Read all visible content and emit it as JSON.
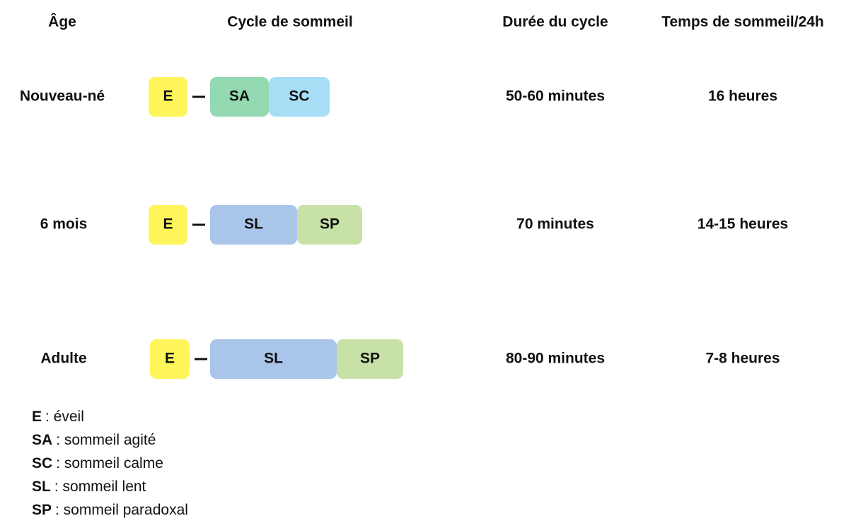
{
  "header": {
    "age": "Âge",
    "cycle": "Cycle de sommeil",
    "duration": "Durée du cycle",
    "total": "Temps de sommeil/24h"
  },
  "rows": [
    {
      "age": "Nouveau-né",
      "segments": [
        {
          "label": "E",
          "color": "#fdf55a"
        },
        {
          "label": "SA",
          "color": "#93d9b2"
        },
        {
          "label": "SC",
          "color": "#a6dff5"
        }
      ],
      "duration": "50-60 minutes",
      "total": "16 heures"
    },
    {
      "age": "6 mois",
      "segments": [
        {
          "label": "E",
          "color": "#fdf55a"
        },
        {
          "label": "SL",
          "color": "#aac5ea"
        },
        {
          "label": "SP",
          "color": "#c7e1a7"
        }
      ],
      "duration": "70 minutes",
      "total": "14-15 heures"
    },
    {
      "age": "Adulte",
      "segments": [
        {
          "label": "E",
          "color": "#fdf55a"
        },
        {
          "label": "SL",
          "color": "#aac5ea"
        },
        {
          "label": "SP",
          "color": "#c7e1a7"
        }
      ],
      "duration": "80-90 minutes",
      "total": "7-8 heures"
    }
  ],
  "legend": [
    {
      "abbr": "E",
      "text": ": éveil"
    },
    {
      "abbr": "SA",
      "text": ": sommeil agité"
    },
    {
      "abbr": "SC",
      "text": ": sommeil calme"
    },
    {
      "abbr": "SL",
      "text": ": sommeil lent"
    },
    {
      "abbr": "SP",
      "text": ": sommeil paradoxal"
    }
  ]
}
